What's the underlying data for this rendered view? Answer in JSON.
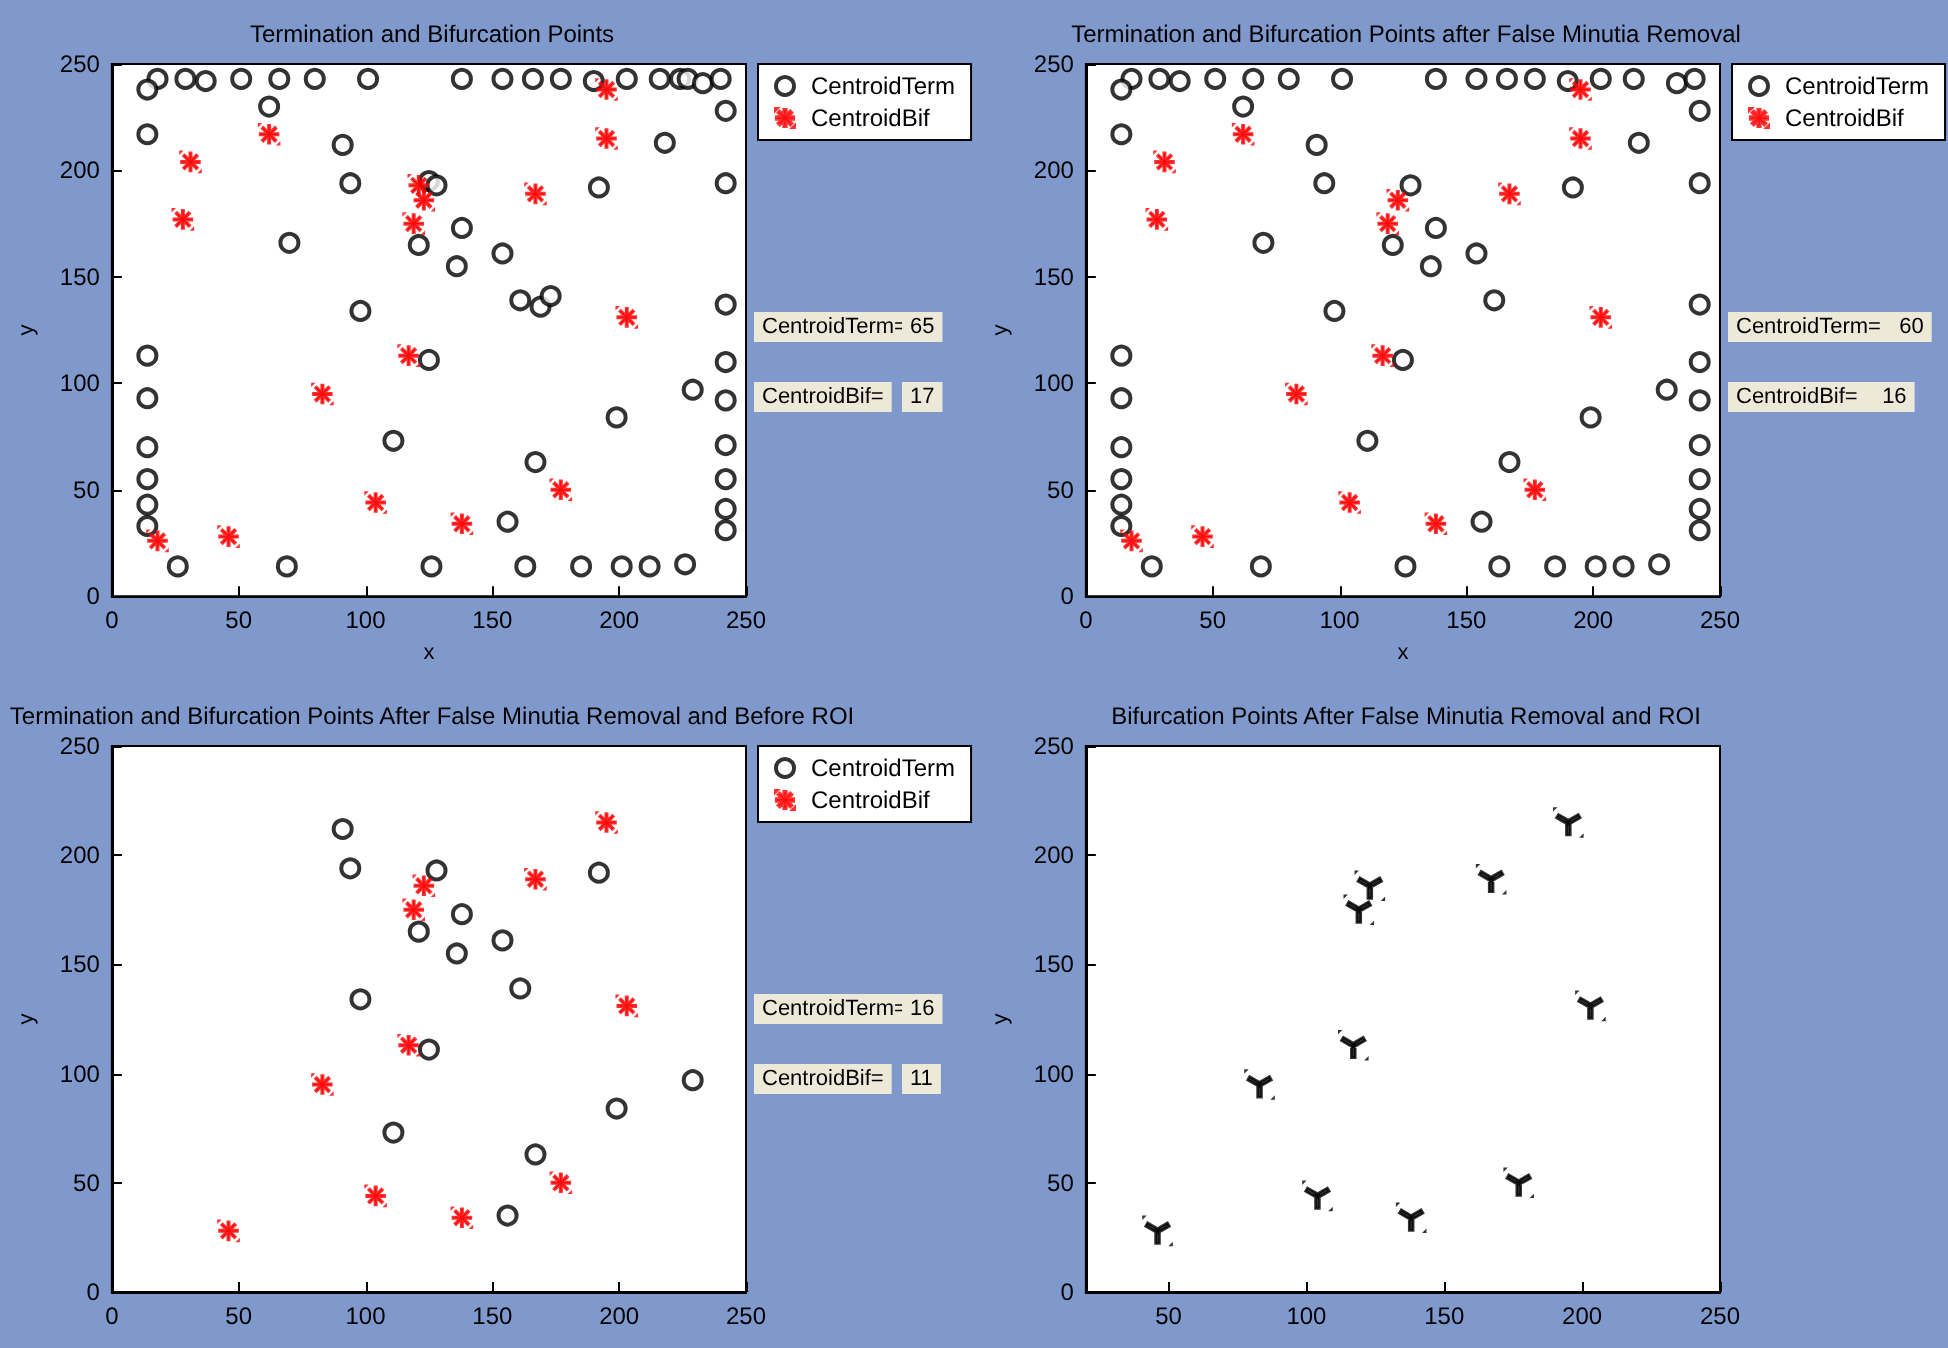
{
  "chart_data": [
    {
      "type": "scatter",
      "title": "Termination and Bifurcation Points",
      "xlabel": "x",
      "ylabel": "y",
      "xlim": [
        0,
        250
      ],
      "ylim": [
        0,
        250
      ],
      "xticks": [
        0,
        50,
        100,
        150,
        200,
        250
      ],
      "yticks": [
        0,
        50,
        100,
        150,
        200,
        250
      ],
      "legend": "top right",
      "grid": false,
      "annotations": [
        "CentroidTerm=",
        "65",
        "CentroidBif=",
        "17"
      ],
      "series": [
        {
          "name": "CentroidTerm",
          "color": "#000000",
          "marker": "circle",
          "x": [
            18,
            29,
            37,
            51,
            66,
            80,
            101,
            138,
            154,
            166,
            177,
            190,
            203,
            216,
            224,
            227,
            233,
            240,
            14,
            14,
            14,
            14,
            14,
            14,
            14,
            14,
            62,
            91,
            94,
            70,
            125,
            128,
            121,
            138,
            136,
            154,
            161,
            169,
            173,
            98,
            125,
            111,
            167,
            156,
            192,
            218,
            199,
            229,
            242,
            242,
            242,
            242,
            242,
            242,
            242,
            242,
            242,
            26,
            69,
            126,
            163,
            185,
            201,
            212,
            226
          ],
          "values": [
            243,
            243,
            242,
            243,
            243,
            243,
            243,
            243,
            243,
            243,
            243,
            242,
            243,
            243,
            243,
            243,
            241,
            243,
            238,
            217,
            113,
            93,
            70,
            55,
            43,
            33,
            230,
            212,
            194,
            166,
            195,
            193,
            165,
            173,
            155,
            161,
            139,
            136,
            141,
            134,
            111,
            73,
            63,
            35,
            192,
            213,
            84,
            97,
            228,
            194,
            137,
            110,
            92,
            71,
            55,
            41,
            31,
            14,
            14,
            14,
            14,
            14,
            14,
            14,
            15
          ]
        },
        {
          "name": "CentroidBif",
          "color": "#ff0000",
          "marker": "star",
          "x": [
            18,
            46,
            28,
            31,
            62,
            83,
            104,
            117,
            119,
            121,
            123,
            138,
            167,
            177,
            195,
            195,
            203
          ],
          "values": [
            26,
            28,
            177,
            204,
            217,
            95,
            44,
            113,
            175,
            193,
            186,
            34,
            189,
            50,
            238,
            215,
            131
          ]
        }
      ]
    },
    {
      "type": "scatter",
      "title": "Termination and Bifurcation Points after False Minutia Removal",
      "xlabel": "x",
      "ylabel": "y",
      "xlim": [
        0,
        250
      ],
      "ylim": [
        0,
        250
      ],
      "xticks": [
        0,
        50,
        100,
        150,
        200,
        250
      ],
      "yticks": [
        0,
        50,
        100,
        150,
        200,
        250
      ],
      "legend": "top right",
      "grid": false,
      "annotations": [
        "CentroidTerm=   60",
        "CentroidBif=    16"
      ],
      "series": [
        {
          "name": "CentroidTerm",
          "color": "#000000",
          "marker": "circle",
          "x": [
            18,
            29,
            37,
            51,
            66,
            80,
            101,
            138,
            154,
            166,
            177,
            190,
            203,
            216,
            233,
            240,
            14,
            14,
            14,
            14,
            14,
            14,
            14,
            14,
            62,
            91,
            94,
            70,
            128,
            121,
            138,
            136,
            154,
            161,
            98,
            125,
            111,
            167,
            156,
            192,
            218,
            199,
            229,
            242,
            242,
            242,
            242,
            242,
            242,
            242,
            242,
            242,
            26,
            69,
            126,
            163,
            185,
            201,
            212,
            226
          ],
          "values": [
            243,
            243,
            242,
            243,
            243,
            243,
            243,
            243,
            243,
            243,
            243,
            242,
            243,
            243,
            241,
            243,
            238,
            217,
            113,
            93,
            70,
            55,
            43,
            33,
            230,
            212,
            194,
            166,
            193,
            165,
            173,
            155,
            161,
            139,
            134,
            111,
            73,
            63,
            35,
            192,
            213,
            84,
            97,
            228,
            194,
            137,
            110,
            92,
            71,
            55,
            41,
            31,
            14,
            14,
            14,
            14,
            14,
            14,
            14,
            15
          ]
        },
        {
          "name": "CentroidBif",
          "color": "#ff0000",
          "marker": "star",
          "x": [
            18,
            46,
            28,
            31,
            62,
            83,
            104,
            117,
            119,
            123,
            138,
            167,
            177,
            195,
            195,
            203
          ],
          "values": [
            26,
            28,
            177,
            204,
            217,
            95,
            44,
            113,
            175,
            186,
            34,
            189,
            50,
            238,
            215,
            131
          ]
        }
      ]
    },
    {
      "type": "scatter",
      "title": "Termination and Bifurcation Points After False Minutia Removal and Before ROI",
      "ylabel": "y",
      "xlim": [
        0,
        250
      ],
      "ylim": [
        0,
        250
      ],
      "xticks": [
        0,
        50,
        100,
        150,
        200,
        250
      ],
      "yticks": [
        0,
        50,
        100,
        150,
        200,
        250
      ],
      "legend": "top right",
      "grid": false,
      "annotations": [
        "CentroidTerm=",
        "16",
        "CentroidBif=",
        "11"
      ],
      "series": [
        {
          "name": "CentroidTerm",
          "color": "#000000",
          "marker": "circle",
          "x": [
            91,
            94,
            128,
            138,
            121,
            136,
            154,
            161,
            98,
            125,
            111,
            167,
            156,
            192,
            199,
            229
          ],
          "values": [
            212,
            194,
            193,
            173,
            165,
            155,
            161,
            139,
            134,
            111,
            73,
            63,
            35,
            192,
            84,
            97
          ]
        },
        {
          "name": "CentroidBif",
          "color": "#ff0000",
          "marker": "star",
          "x": [
            46,
            83,
            104,
            117,
            119,
            123,
            138,
            167,
            177,
            195,
            203
          ],
          "values": [
            28,
            95,
            44,
            113,
            175,
            186,
            34,
            189,
            50,
            215,
            131
          ]
        }
      ]
    },
    {
      "type": "scatter",
      "title": "Bifurcation Points After False Minutia Removal and ROI",
      "ylabel": "y",
      "xlim": [
        20,
        250
      ],
      "ylim": [
        0,
        250
      ],
      "xticks": [
        50,
        100,
        150,
        200,
        250
      ],
      "yticks": [
        0,
        50,
        100,
        150,
        200,
        250
      ],
      "grid": false,
      "series": [
        {
          "color": "#000000",
          "x": [
            46,
            83,
            104,
            117,
            119,
            123,
            138,
            167,
            177,
            195,
            203
          ],
          "values": [
            28,
            95,
            44,
            113,
            175,
            186,
            34,
            189,
            50,
            215,
            131
          ]
        }
      ]
    }
  ]
}
